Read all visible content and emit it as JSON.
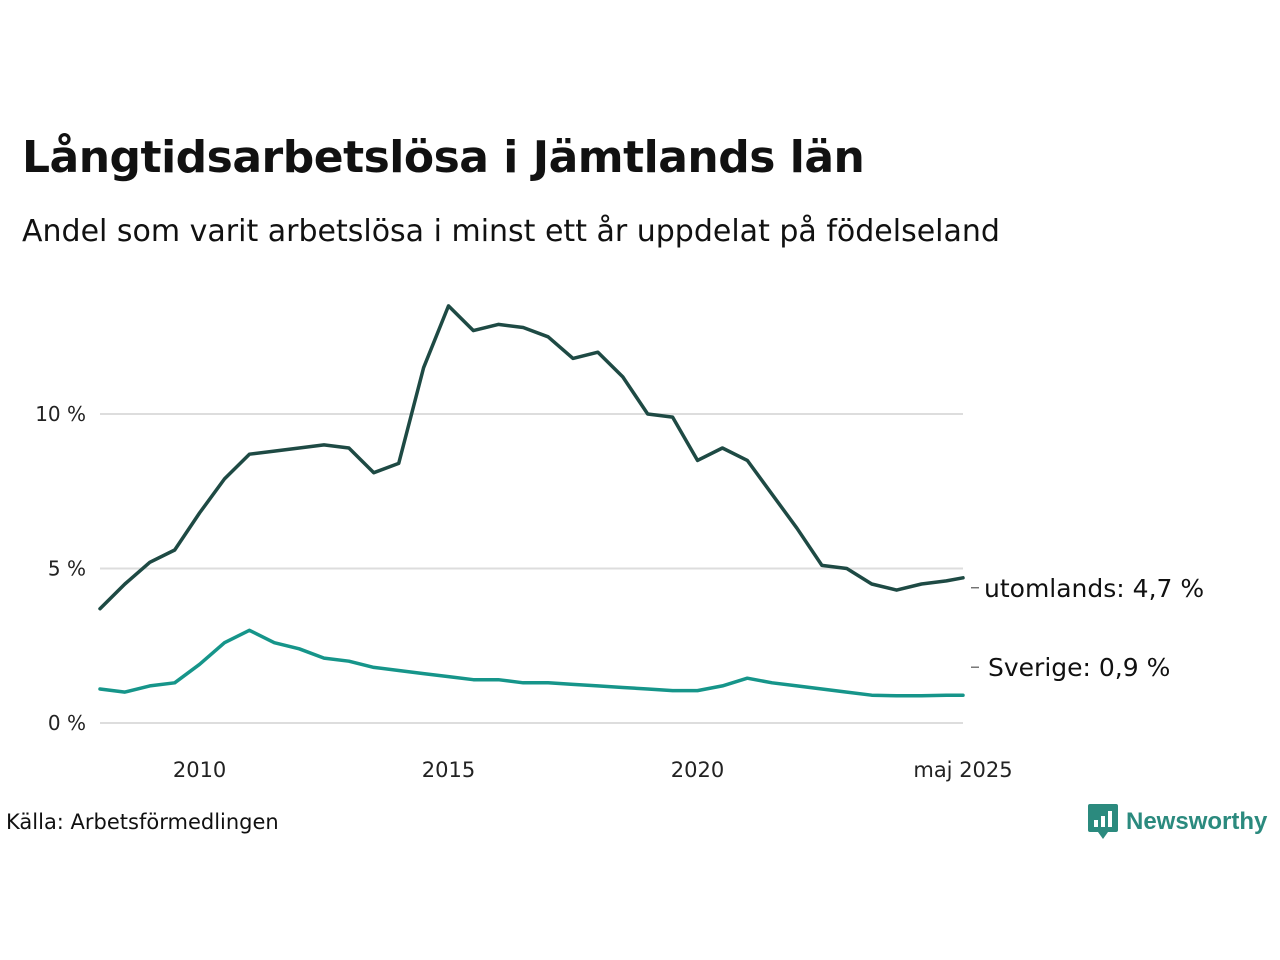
{
  "header": {
    "title": "Långtidsarbetslösa i Jämtlands län",
    "subtitle": "Andel som varit arbetslösa i minst ett år uppdelat på födelseland"
  },
  "footer": {
    "source": "Källa: Arbetsförmedlingen",
    "brand": "Newsworthy"
  },
  "colors": {
    "utomlands": "#1e4a44",
    "sverige": "#16958a",
    "grid": "#dddddd",
    "brand": "#2b8a7e"
  },
  "chart_data": {
    "type": "line",
    "title": "Långtidsarbetslösa i Jämtlands län",
    "subtitle": "Andel som varit arbetslösa i minst ett år uppdelat på födelseland",
    "ylim": [
      0,
      14
    ],
    "y_ticks": [
      0,
      5,
      10
    ],
    "y_tick_labels": [
      "0 %",
      "5 %",
      "10 %"
    ],
    "x_ticks": [
      "2010",
      "2015",
      "2020",
      "maj 2025"
    ],
    "grid": true,
    "x": [
      "2008-01",
      "2008-07",
      "2009-01",
      "2009-07",
      "2010-01",
      "2010-07",
      "2011-01",
      "2011-07",
      "2012-01",
      "2012-07",
      "2013-01",
      "2013-07",
      "2014-01",
      "2014-07",
      "2015-01",
      "2015-07",
      "2016-01",
      "2016-07",
      "2017-01",
      "2017-07",
      "2018-01",
      "2018-07",
      "2019-01",
      "2019-07",
      "2020-01",
      "2020-07",
      "2021-01",
      "2021-07",
      "2022-01",
      "2022-07",
      "2023-01",
      "2023-07",
      "2024-01",
      "2024-07",
      "2025-01",
      "2025-05"
    ],
    "series": [
      {
        "name": "utomlands",
        "end_label": "utomlands: 4,7 %",
        "values": [
          3.7,
          4.5,
          5.2,
          5.6,
          6.8,
          7.9,
          8.7,
          8.8,
          8.9,
          9.0,
          8.9,
          8.1,
          8.4,
          11.5,
          13.5,
          12.7,
          12.9,
          12.8,
          12.5,
          11.8,
          12.0,
          11.2,
          10.0,
          9.9,
          8.5,
          8.9,
          8.5,
          7.4,
          6.3,
          5.1,
          5.0,
          4.5,
          4.3,
          4.5,
          4.6,
          4.7
        ]
      },
      {
        "name": "Sverige",
        "end_label": "Sverige: 0,9 %",
        "values": [
          1.1,
          1.0,
          1.2,
          1.3,
          1.9,
          2.6,
          3.0,
          2.6,
          2.4,
          2.1,
          2.0,
          1.8,
          1.7,
          1.6,
          1.5,
          1.4,
          1.4,
          1.3,
          1.3,
          1.25,
          1.2,
          1.15,
          1.1,
          1.05,
          1.05,
          1.2,
          1.45,
          1.3,
          1.2,
          1.1,
          1.0,
          0.9,
          0.88,
          0.88,
          0.9,
          0.9
        ]
      }
    ]
  }
}
